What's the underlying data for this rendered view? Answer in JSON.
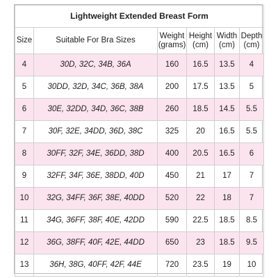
{
  "title": "Lightweight Extended Breast Form",
  "headers": {
    "size": "Size",
    "bra": "Suitable For Bra Sizes",
    "weight_line1": "Weight",
    "weight_line2": "(grams)",
    "height_line1": "Height",
    "height_line2": "(cm)",
    "width_line1": "Width",
    "width_line2": "(cm)",
    "depth_line1": "Depth",
    "depth_line2": "(cm)"
  },
  "row_shading_color": "#fce4ee",
  "rows": [
    {
      "size": "4",
      "bra": "30D, 32C, 34B, 36A",
      "weight": "160",
      "height": "16.5",
      "width": "13.5",
      "depth": "4",
      "shaded": true
    },
    {
      "size": "5",
      "bra": "30DD, 32D, 34C, 36B, 38A",
      "weight": "200",
      "height": "17.5",
      "width": "13.5",
      "depth": "5",
      "shaded": false
    },
    {
      "size": "6",
      "bra": "30E, 32DD, 34D, 36C, 38B",
      "weight": "260",
      "height": "18.5",
      "width": "14.5",
      "depth": "5.5",
      "shaded": true
    },
    {
      "size": "7",
      "bra": "30F, 32E, 34DD, 36D, 38C",
      "weight": "325",
      "height": "20",
      "width": "16.5",
      "depth": "5.5",
      "shaded": false
    },
    {
      "size": "8",
      "bra": "30FF, 32F, 34E, 36DD, 38D",
      "weight": "400",
      "height": "20.5",
      "width": "16.5",
      "depth": "6",
      "shaded": true
    },
    {
      "size": "9",
      "bra": "32FF, 34F, 36E, 38DD, 40D",
      "weight": "450",
      "height": "21",
      "width": "17",
      "depth": "7",
      "shaded": false
    },
    {
      "size": "10",
      "bra": "32G, 34FF, 36F, 38E, 40DD",
      "weight": "520",
      "height": "22",
      "width": "18",
      "depth": "7",
      "shaded": true
    },
    {
      "size": "11",
      "bra": "34G, 36FF, 38F, 40E, 42DD",
      "weight": "590",
      "height": "22.5",
      "width": "18.5",
      "depth": "8.5",
      "shaded": false
    },
    {
      "size": "12",
      "bra": "36G, 38FF, 40F, 42E, 44DD",
      "weight": "650",
      "height": "23",
      "width": "18.5",
      "depth": "9.5",
      "shaded": true
    },
    {
      "size": "13",
      "bra": "36H, 38G, 40FF, 42F, 44E",
      "weight": "720",
      "height": "23.5",
      "width": "19",
      "depth": "10",
      "shaded": false
    }
  ]
}
